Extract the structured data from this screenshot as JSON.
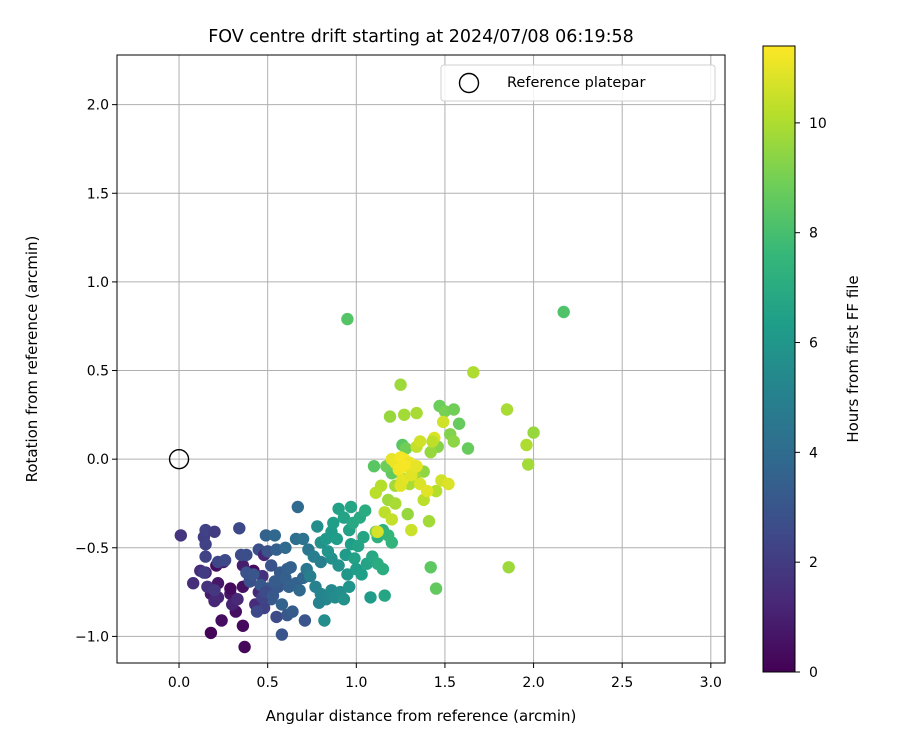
{
  "chart_data": {
    "type": "scatter",
    "title": "FOV centre drift starting at 2024/07/08 06:19:58",
    "xlabel": "Angular distance from reference (arcmin)",
    "ylabel": "Rotation from reference (arcmin)",
    "xlim": [
      -0.35,
      3.08
    ],
    "ylim": [
      -1.15,
      2.28
    ],
    "xticks": [
      0.0,
      0.5,
      1.0,
      1.5,
      2.0,
      2.5,
      3.0
    ],
    "xtick_labels": [
      "0.0",
      "0.5",
      "1.0",
      "1.5",
      "2.0",
      "2.5",
      "3.0"
    ],
    "yticks": [
      -1.0,
      -0.5,
      0.0,
      0.5,
      1.0,
      1.5,
      2.0
    ],
    "ytick_labels": [
      "−1.0",
      "−0.5",
      "0.0",
      "0.5",
      "1.0",
      "1.5",
      "2.0"
    ],
    "grid": true,
    "legend": {
      "placement": "upper-right",
      "entries": [
        "Reference platepar"
      ]
    },
    "reference_point": {
      "x": 0.0,
      "y": 0.0
    },
    "colorbar": {
      "label": "Hours from first FF file",
      "colormap": "viridis",
      "range": [
        0,
        11.4
      ],
      "ticks": [
        0,
        2,
        4,
        6,
        8,
        10
      ],
      "tick_labels": [
        "0",
        "2",
        "4",
        "6",
        "8",
        "10"
      ]
    },
    "colors": {
      "viridis": [
        "#440154",
        "#482878",
        "#3e4a89",
        "#31688e",
        "#26828e",
        "#1f9e89",
        "#35b779",
        "#6ece58",
        "#b5de2b",
        "#fde725"
      ]
    },
    "points_columns": [
      "x",
      "y",
      "hours"
    ],
    "points": [
      [
        0.18,
        -0.98,
        0.1
      ],
      [
        0.37,
        -1.06,
        0.2
      ],
      [
        0.36,
        -0.94,
        0.3
      ],
      [
        0.24,
        -0.91,
        0.4
      ],
      [
        0.32,
        -0.86,
        0.5
      ],
      [
        0.29,
        -0.76,
        0.6
      ],
      [
        0.36,
        -0.72,
        0.5
      ],
      [
        0.22,
        -0.7,
        0.7
      ],
      [
        0.4,
        -0.68,
        0.6
      ],
      [
        0.29,
        -0.73,
        0.3
      ],
      [
        0.18,
        -0.76,
        0.8
      ],
      [
        0.21,
        -0.6,
        0.4
      ],
      [
        0.25,
        -0.58,
        0.8
      ],
      [
        0.36,
        -0.6,
        0.9
      ],
      [
        0.42,
        -0.63,
        0.3
      ],
      [
        0.3,
        -0.82,
        1.1
      ],
      [
        0.22,
        -0.78,
        1.2
      ],
      [
        0.33,
        -0.79,
        1.3
      ],
      [
        0.15,
        -0.64,
        1.2
      ],
      [
        0.2,
        -0.8,
        1.3
      ],
      [
        0.12,
        -0.63,
        1.4
      ],
      [
        0.08,
        -0.7,
        1.5
      ],
      [
        0.16,
        -0.72,
        1.6
      ],
      [
        0.2,
        -0.74,
        1.8
      ],
      [
        0.14,
        -0.64,
        2.0
      ],
      [
        0.01,
        -0.43,
        1.7
      ],
      [
        0.14,
        -0.44,
        2.1
      ],
      [
        0.15,
        -0.4,
        2.2
      ],
      [
        0.2,
        -0.41,
        2.0
      ],
      [
        0.15,
        -0.55,
        2.3
      ],
      [
        0.15,
        -0.48,
        2.2
      ],
      [
        0.22,
        -0.58,
        2.4
      ],
      [
        0.26,
        -0.57,
        2.5
      ],
      [
        0.35,
        -0.54,
        2.6
      ],
      [
        0.34,
        -0.39,
        2.5
      ],
      [
        0.38,
        -0.54,
        2.7
      ],
      [
        0.45,
        -0.51,
        2.8
      ],
      [
        0.48,
        -0.54,
        1.2
      ],
      [
        0.5,
        -0.52,
        2.9
      ],
      [
        0.52,
        -0.6,
        2.9
      ],
      [
        0.47,
        -0.66,
        1.6
      ],
      [
        0.45,
        -0.75,
        1.3
      ],
      [
        0.43,
        -0.82,
        1.4
      ],
      [
        0.4,
        -0.69,
        2.8
      ],
      [
        0.38,
        -0.64,
        2.9
      ],
      [
        0.42,
        -0.65,
        3.0
      ],
      [
        0.46,
        -0.71,
        3.1
      ],
      [
        0.5,
        -0.73,
        3.0
      ],
      [
        0.52,
        -0.79,
        3.2
      ],
      [
        0.56,
        -0.72,
        3.1
      ],
      [
        0.54,
        -0.69,
        3.3
      ],
      [
        0.57,
        -0.64,
        3.2
      ],
      [
        0.6,
        -0.67,
        3.4
      ],
      [
        0.61,
        -0.62,
        3.4
      ],
      [
        0.63,
        -0.61,
        3.5
      ],
      [
        0.58,
        -0.99,
        3.0
      ],
      [
        0.55,
        -0.89,
        2.6
      ],
      [
        0.61,
        -0.88,
        3.1
      ],
      [
        0.64,
        -0.86,
        3.3
      ],
      [
        0.71,
        -0.91,
        3.0
      ],
      [
        0.48,
        -0.84,
        2.2
      ],
      [
        0.44,
        -0.86,
        2.5
      ],
      [
        0.47,
        -0.78,
        2.3
      ],
      [
        0.49,
        -0.75,
        2.6
      ],
      [
        0.53,
        -0.77,
        3.1
      ],
      [
        0.58,
        -0.82,
        3.6
      ],
      [
        0.62,
        -0.72,
        3.5
      ],
      [
        0.66,
        -0.7,
        3.6
      ],
      [
        0.68,
        -0.74,
        3.8
      ],
      [
        0.7,
        -0.67,
        3.7
      ],
      [
        0.49,
        -0.43,
        3.6
      ],
      [
        0.54,
        -0.43,
        3.8
      ],
      [
        0.55,
        -0.51,
        3.4
      ],
      [
        0.6,
        -0.5,
        3.9
      ],
      [
        0.66,
        -0.45,
        4.1
      ],
      [
        0.7,
        -0.45,
        4.3
      ],
      [
        0.67,
        -0.27,
        3.9
      ],
      [
        0.73,
        -0.51,
        4.5
      ],
      [
        0.76,
        -0.55,
        4.8
      ],
      [
        0.8,
        -0.58,
        4.9
      ],
      [
        0.72,
        -0.62,
        4.6
      ],
      [
        0.74,
        -0.66,
        4.9
      ],
      [
        0.77,
        -0.72,
        5.0
      ],
      [
        0.8,
        -0.76,
        5.2
      ],
      [
        0.83,
        -0.79,
        5.3
      ],
      [
        0.79,
        -0.81,
        5.1
      ],
      [
        0.82,
        -0.91,
        5.6
      ],
      [
        0.86,
        -0.74,
        5.4
      ],
      [
        0.88,
        -0.78,
        5.5
      ],
      [
        0.91,
        -0.75,
        5.6
      ],
      [
        0.93,
        -0.79,
        5.8
      ],
      [
        0.96,
        -0.72,
        5.9
      ],
      [
        0.95,
        -0.65,
        6.0
      ],
      [
        0.9,
        -0.6,
        5.8
      ],
      [
        0.86,
        -0.56,
        5.7
      ],
      [
        0.84,
        -0.52,
        5.9
      ],
      [
        0.78,
        -0.38,
        5.6
      ],
      [
        0.8,
        -0.47,
        5.8
      ],
      [
        0.83,
        -0.45,
        6.1
      ],
      [
        0.86,
        -0.41,
        6.2
      ],
      [
        0.89,
        -0.45,
        6.3
      ],
      [
        0.87,
        -0.36,
        6.4
      ],
      [
        0.9,
        -0.28,
        6.5
      ],
      [
        0.93,
        -0.33,
        6.6
      ],
      [
        0.96,
        -0.4,
        6.5
      ],
      [
        0.97,
        -0.48,
        6.4
      ],
      [
        0.94,
        -0.54,
        6.2
      ],
      [
        0.99,
        -0.56,
        6.5
      ],
      [
        1.01,
        -0.49,
        6.6
      ],
      [
        1.04,
        -0.44,
        6.7
      ],
      [
        0.98,
        -0.36,
        6.8
      ],
      [
        0.97,
        -0.27,
        6.7
      ],
      [
        1.02,
        -0.33,
        6.9
      ],
      [
        1.05,
        -0.29,
        7.0
      ],
      [
        1.0,
        -0.62,
        6.3
      ],
      [
        1.03,
        -0.65,
        6.4
      ],
      [
        1.06,
        -0.59,
        6.6
      ],
      [
        1.09,
        -0.55,
        6.8
      ],
      [
        1.12,
        -0.59,
        7.0
      ],
      [
        1.15,
        -0.62,
        7.1
      ],
      [
        1.16,
        -0.77,
        6.7
      ],
      [
        1.08,
        -0.78,
        6.2
      ],
      [
        1.12,
        -0.44,
        7.2
      ],
      [
        1.15,
        -0.4,
        7.3
      ],
      [
        1.2,
        -0.47,
        7.4
      ],
      [
        1.18,
        -0.43,
        7.5
      ],
      [
        1.1,
        -0.04,
        8.4
      ],
      [
        1.2,
        -0.08,
        8.6
      ],
      [
        1.17,
        -0.04,
        8.8
      ],
      [
        1.26,
        0.08,
        8.4
      ],
      [
        1.28,
        0.06,
        8.9
      ],
      [
        1.42,
        -0.61,
        8.5
      ],
      [
        1.45,
        -0.73,
        8.6
      ],
      [
        0.95,
        0.79,
        8.3
      ],
      [
        2.17,
        0.83,
        8.2
      ],
      [
        1.47,
        0.3,
        8.8
      ],
      [
        1.5,
        0.27,
        9.0
      ],
      [
        1.55,
        0.28,
        8.9
      ],
      [
        1.58,
        0.2,
        8.7
      ],
      [
        1.53,
        0.14,
        9.2
      ],
      [
        1.55,
        0.1,
        9.4
      ],
      [
        1.63,
        0.06,
        8.7
      ],
      [
        1.46,
        0.07,
        9.3
      ],
      [
        1.42,
        0.04,
        9.6
      ],
      [
        1.38,
        -0.07,
        9.5
      ],
      [
        1.33,
        -0.1,
        9.8
      ],
      [
        1.3,
        -0.14,
        9.9
      ],
      [
        1.26,
        -0.11,
        10.0
      ],
      [
        1.22,
        -0.15,
        9.8
      ],
      [
        1.18,
        -0.23,
        9.7
      ],
      [
        1.14,
        -0.15,
        10.1
      ],
      [
        1.11,
        -0.19,
        10.2
      ],
      [
        1.16,
        -0.3,
        10.3
      ],
      [
        1.2,
        -0.34,
        10.4
      ],
      [
        1.22,
        -0.25,
        9.9
      ],
      [
        1.29,
        -0.31,
        9.6
      ],
      [
        1.31,
        -0.4,
        10.5
      ],
      [
        1.38,
        -0.23,
        10.2
      ],
      [
        1.41,
        -0.35,
        9.8
      ],
      [
        1.45,
        -0.18,
        10.1
      ],
      [
        1.48,
        -0.12,
        10.6
      ],
      [
        1.52,
        -0.14,
        10.8
      ],
      [
        1.19,
        0.24,
        9.6
      ],
      [
        1.27,
        0.25,
        9.8
      ],
      [
        1.34,
        0.26,
        9.9
      ],
      [
        1.25,
        0.42,
        9.7
      ],
      [
        1.66,
        0.49,
        10.0
      ],
      [
        1.85,
        0.28,
        9.9
      ],
      [
        1.86,
        -0.61,
        9.7
      ],
      [
        1.96,
        0.08,
        10.0
      ],
      [
        1.97,
        -0.03,
        9.8
      ],
      [
        2.0,
        0.15,
        9.6
      ],
      [
        1.11,
        -0.41,
        9.0
      ],
      [
        1.12,
        -0.41,
        10.7
      ],
      [
        1.44,
        0.12,
        10.8
      ],
      [
        1.49,
        0.21,
        10.6
      ],
      [
        1.43,
        0.1,
        10.3
      ],
      [
        1.34,
        0.07,
        10.4
      ],
      [
        1.36,
        0.1,
        10.6
      ],
      [
        1.2,
        0.0,
        11.0
      ],
      [
        1.22,
        -0.02,
        11.1
      ],
      [
        1.25,
        0.01,
        11.2
      ],
      [
        1.27,
        0.0,
        11.3
      ],
      [
        1.3,
        -0.02,
        11.1
      ],
      [
        1.32,
        -0.05,
        11.0
      ],
      [
        1.24,
        -0.06,
        11.2
      ],
      [
        1.28,
        -0.04,
        11.3
      ],
      [
        1.26,
        -0.12,
        11.0
      ],
      [
        1.31,
        -0.09,
        10.9
      ],
      [
        1.36,
        -0.14,
        10.8
      ],
      [
        1.4,
        -0.18,
        10.9
      ],
      [
        1.34,
        -0.04,
        11.0
      ],
      [
        1.25,
        -0.15,
        10.9
      ]
    ]
  }
}
